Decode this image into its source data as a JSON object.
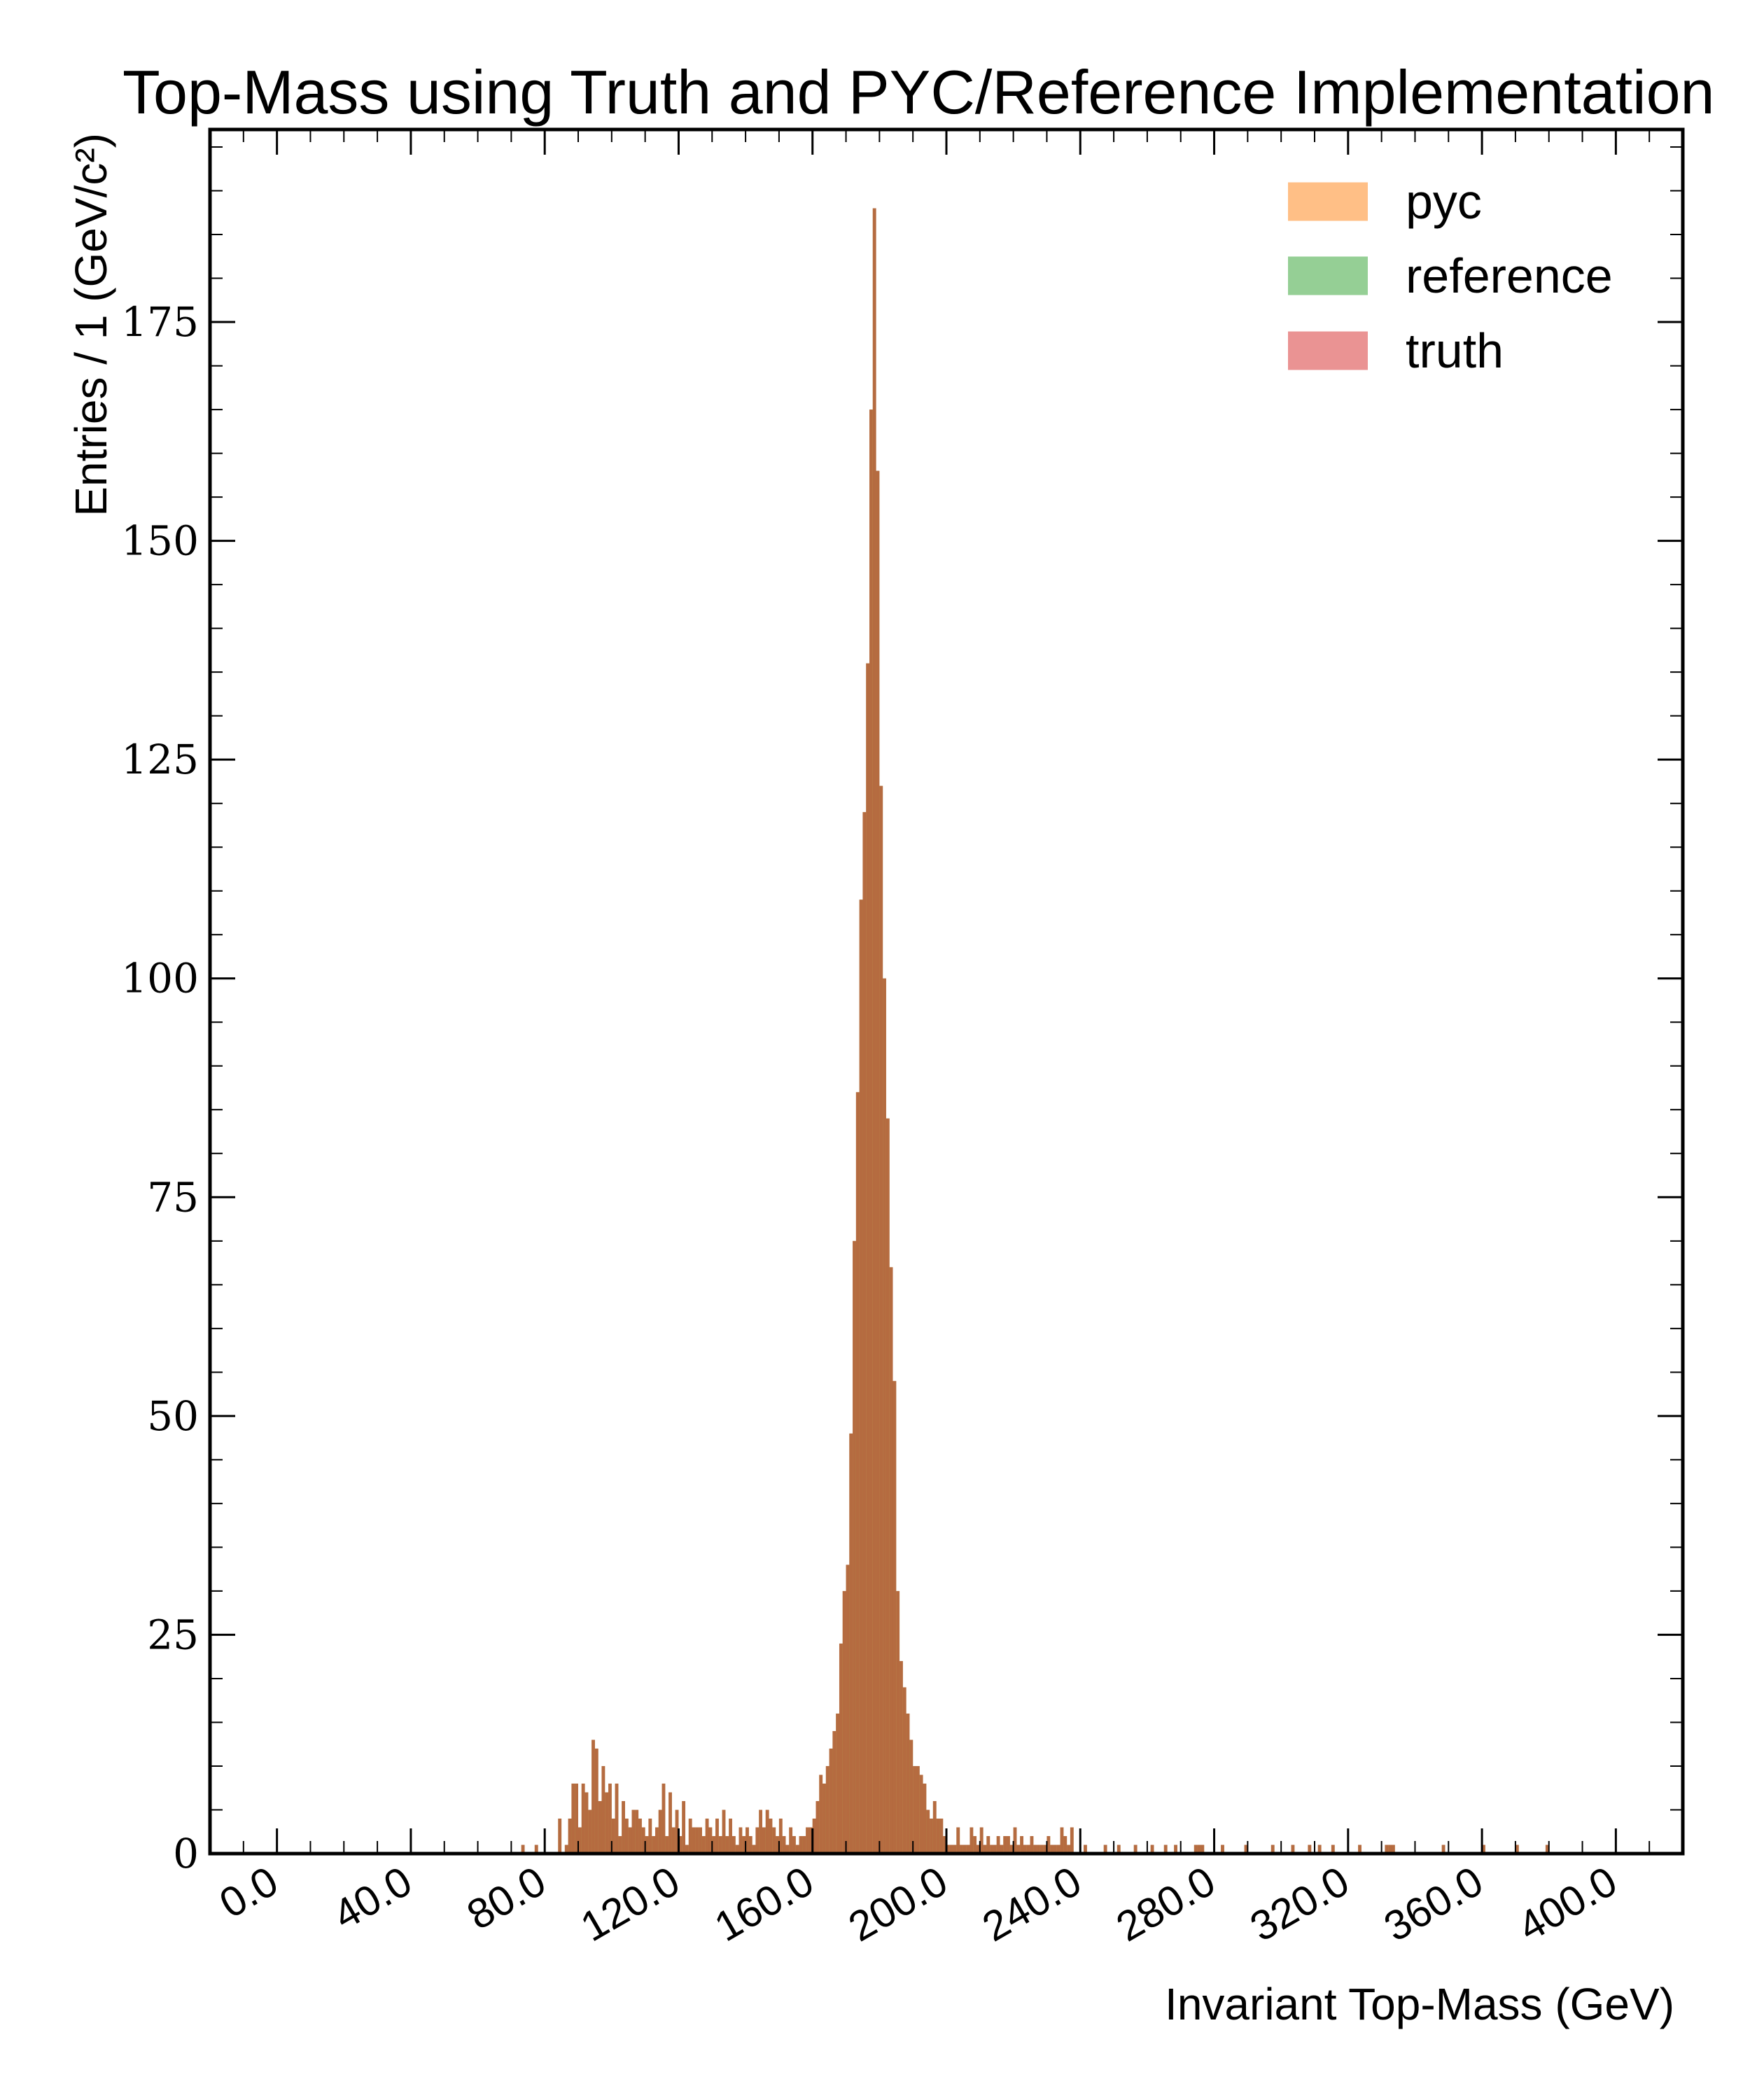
{
  "chart_data": {
    "type": "bar",
    "title": "Top-Mass using Truth and PYC/Reference Implementation",
    "xlabel": "Invariant Top-Mass (GeV)",
    "ylabel": "Entries / 1 (GeV/c²)",
    "xlim": [
      -20,
      420
    ],
    "ylim": [
      0,
      197
    ],
    "bin_width": 1,
    "xticks": [
      "0.0",
      "40.0",
      "80.0",
      "120.0",
      "160.0",
      "200.0",
      "240.0",
      "280.0",
      "320.0",
      "360.0",
      "400.0"
    ],
    "xtick_values": [
      0,
      40,
      80,
      120,
      160,
      200,
      240,
      280,
      320,
      360,
      400
    ],
    "yticks": [
      "0",
      "25",
      "50",
      "75",
      "100",
      "125",
      "150",
      "175"
    ],
    "ytick_values": [
      0,
      25,
      50,
      75,
      100,
      125,
      150,
      175
    ],
    "legend_position": "top-right",
    "grid": false,
    "series": [
      {
        "name": "pyc",
        "color": "#ff7f0e",
        "alpha": 0.5
      },
      {
        "name": "reference",
        "color": "#2ca02c",
        "alpha": 0.5
      },
      {
        "name": "truth",
        "color": "#d62728",
        "alpha": 0.5
      }
    ],
    "bins": {
      "x": [
        73,
        77,
        84,
        86,
        87,
        88,
        89,
        90,
        91,
        92,
        93,
        94,
        95,
        96,
        97,
        98,
        99,
        100,
        101,
        102,
        103,
        104,
        105,
        106,
        107,
        108,
        109,
        110,
        111,
        112,
        113,
        114,
        115,
        116,
        117,
        118,
        119,
        120,
        121,
        122,
        123,
        124,
        125,
        126,
        127,
        128,
        129,
        130,
        131,
        132,
        133,
        134,
        135,
        136,
        137,
        138,
        139,
        140,
        141,
        142,
        143,
        144,
        145,
        146,
        147,
        148,
        149,
        150,
        151,
        152,
        153,
        154,
        155,
        156,
        157,
        158,
        159,
        160,
        161,
        162,
        163,
        164,
        165,
        166,
        167,
        168,
        169,
        170,
        171,
        172,
        173,
        174,
        175,
        176,
        177,
        178,
        179,
        180,
        181,
        182,
        183,
        184,
        185,
        186,
        187,
        188,
        189,
        190,
        191,
        192,
        193,
        194,
        195,
        196,
        197,
        198,
        199,
        200,
        201,
        202,
        203,
        204,
        205,
        206,
        207,
        208,
        209,
        210,
        211,
        212,
        213,
        214,
        215,
        216,
        217,
        218,
        219,
        220,
        221,
        222,
        223,
        224,
        225,
        226,
        227,
        228,
        229,
        230,
        231,
        232,
        233,
        234,
        235,
        236,
        237,
        241,
        247,
        251,
        256,
        261,
        265,
        268,
        274,
        275,
        276,
        282,
        289,
        297,
        303,
        308,
        311,
        315,
        323,
        331,
        332,
        333,
        348,
        360,
        370,
        379
      ],
      "y": [
        1,
        1,
        4,
        1,
        4,
        8,
        8,
        3,
        8,
        7,
        5,
        13,
        12,
        6,
        10,
        7,
        8,
        4,
        8,
        2,
        6,
        4,
        3,
        5,
        5,
        4,
        3,
        2,
        4,
        2,
        3,
        5,
        8,
        2,
        7,
        3,
        5,
        2,
        6,
        1,
        4,
        3,
        3,
        3,
        2,
        4,
        3,
        2,
        4,
        2,
        5,
        2,
        4,
        2,
        1,
        3,
        2,
        3,
        2,
        1,
        3,
        5,
        3,
        5,
        4,
        3,
        2,
        4,
        2,
        1,
        3,
        2,
        1,
        2,
        2,
        3,
        3,
        4,
        6,
        9,
        8,
        10,
        12,
        14,
        16,
        24,
        30,
        33,
        48,
        70,
        87,
        109,
        119,
        136,
        165,
        188,
        158,
        122,
        100,
        84,
        67,
        54,
        30,
        22,
        19,
        16,
        13,
        10,
        10,
        9,
        8,
        5,
        4,
        6,
        4,
        4,
        2,
        1,
        1,
        1,
        3,
        1,
        1,
        1,
        3,
        2,
        1,
        3,
        1,
        2,
        1,
        1,
        2,
        1,
        2,
        2,
        1,
        3,
        1,
        2,
        1,
        1,
        2,
        1,
        1,
        1,
        1,
        2,
        1,
        1,
        1,
        3,
        2,
        1,
        3,
        1,
        1,
        1,
        1,
        1,
        1,
        1,
        1,
        1,
        1,
        1,
        1,
        1,
        1,
        1,
        1,
        1,
        1,
        1,
        1,
        1,
        1,
        1,
        1,
        1
      ]
    }
  }
}
